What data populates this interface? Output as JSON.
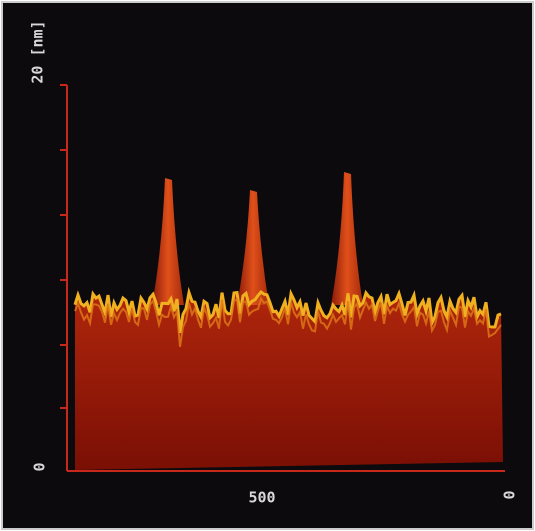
{
  "axis": {
    "z_label": "20 [nm]",
    "z_origin": "0",
    "x_mid": "500",
    "x_end": "0"
  }
}
